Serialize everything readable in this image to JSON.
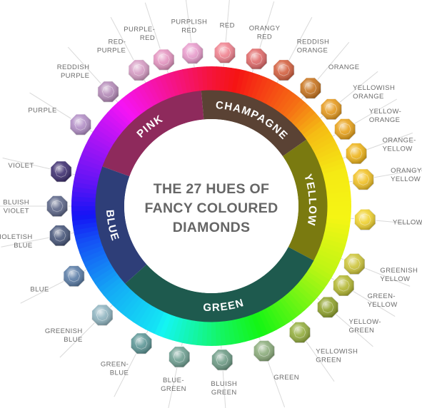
{
  "title_lines": [
    "THE 27 HUES OF",
    "FANCY COLOURED",
    "DIAMONDS"
  ],
  "bands": [
    {
      "label": "PINK",
      "start": 290,
      "end": 355
    },
    {
      "label": "CHAMPAGNE",
      "start": 355,
      "end": 55
    },
    {
      "label": "YELLOW",
      "start": 55,
      "end": 118
    },
    {
      "label": "GREEN",
      "start": 118,
      "end": 228
    },
    {
      "label": "BLUE",
      "start": 228,
      "end": 290
    }
  ],
  "hues": [
    {
      "lines": [
        "RED"
      ],
      "angle": 5,
      "color": "#f0828f"
    },
    {
      "lines": [
        "ORANGY",
        "RED"
      ],
      "angle": 17,
      "color": "#e06a6a"
    },
    {
      "lines": [
        "REDDISH",
        "ORANGE"
      ],
      "angle": 28,
      "color": "#d4603f"
    },
    {
      "lines": [
        "ORANGE"
      ],
      "angle": 40,
      "color": "#c8741e"
    },
    {
      "lines": [
        "YELLOWISH",
        "ORANGE"
      ],
      "angle": 51,
      "color": "#e69a1e"
    },
    {
      "lines": [
        "YELLOW-",
        "ORANGE"
      ],
      "angle": 60,
      "color": "#e8a21a"
    },
    {
      "lines": [
        "ORANGE-",
        "YELLOW"
      ],
      "angle": 70,
      "color": "#eeb41a"
    },
    {
      "lines": [
        "ORANGY-",
        "YELLOW"
      ],
      "angle": 80,
      "color": "#f2c226"
    },
    {
      "lines": [
        "YELLOW"
      ],
      "angle": 95,
      "color": "#f0d230"
    },
    {
      "lines": [
        "GREENISH",
        "YELLOW"
      ],
      "angle": 112,
      "color": "#cdc53a"
    },
    {
      "lines": [
        "GREEN-",
        "YELLOW"
      ],
      "angle": 121,
      "color": "#b4b832"
    },
    {
      "lines": [
        "YELLOW-",
        "GREEN"
      ],
      "angle": 131,
      "color": "#8fa22c"
    },
    {
      "lines": [
        "YELLOWISH",
        "GREEN"
      ],
      "angle": 145,
      "color": "#94ae3e"
    },
    {
      "lines": [
        "GREEN"
      ],
      "angle": 160,
      "color": "#8cad7c"
    },
    {
      "lines": [
        "BLUISH",
        "GREEN"
      ],
      "angle": 176,
      "color": "#6e9c86"
    },
    {
      "lines": [
        "BLUE-",
        "GREEN"
      ],
      "angle": 192,
      "color": "#6fa092"
    },
    {
      "lines": [
        "GREEN-",
        "BLUE"
      ],
      "angle": 207,
      "color": "#5c9696"
    },
    {
      "lines": [
        "GREENISH",
        "BLUE"
      ],
      "angle": 225,
      "color": "#8fb4c0"
    },
    {
      "lines": [
        "BLUE"
      ],
      "angle": 243,
      "color": "#5a7ca6"
    },
    {
      "lines": [
        "VIOLETISH",
        "BLUE"
      ],
      "angle": 259,
      "color": "#47567a"
    },
    {
      "lines": [
        "BLUISH",
        "VIOLET"
      ],
      "angle": 270,
      "color": "#5c6688"
    },
    {
      "lines": [
        "VIOLET"
      ],
      "angle": 283,
      "color": "#3e2f70"
    },
    {
      "lines": [
        "PURPLE"
      ],
      "angle": 302,
      "color": "#b28ec6"
    },
    {
      "lines": [
        "REDDISH",
        "PURPLE"
      ],
      "angle": 318,
      "color": "#b48ab8"
    },
    {
      "lines": [
        "RED-",
        "PURPLE"
      ],
      "angle": 332,
      "color": "#d69cc4"
    },
    {
      "lines": [
        "PURPLE-",
        "RED"
      ],
      "angle": 342,
      "color": "#e494c0"
    },
    {
      "lines": [
        "PURPLISH",
        "RED"
      ],
      "angle": 353,
      "color": "#e89ccc"
    }
  ]
}
